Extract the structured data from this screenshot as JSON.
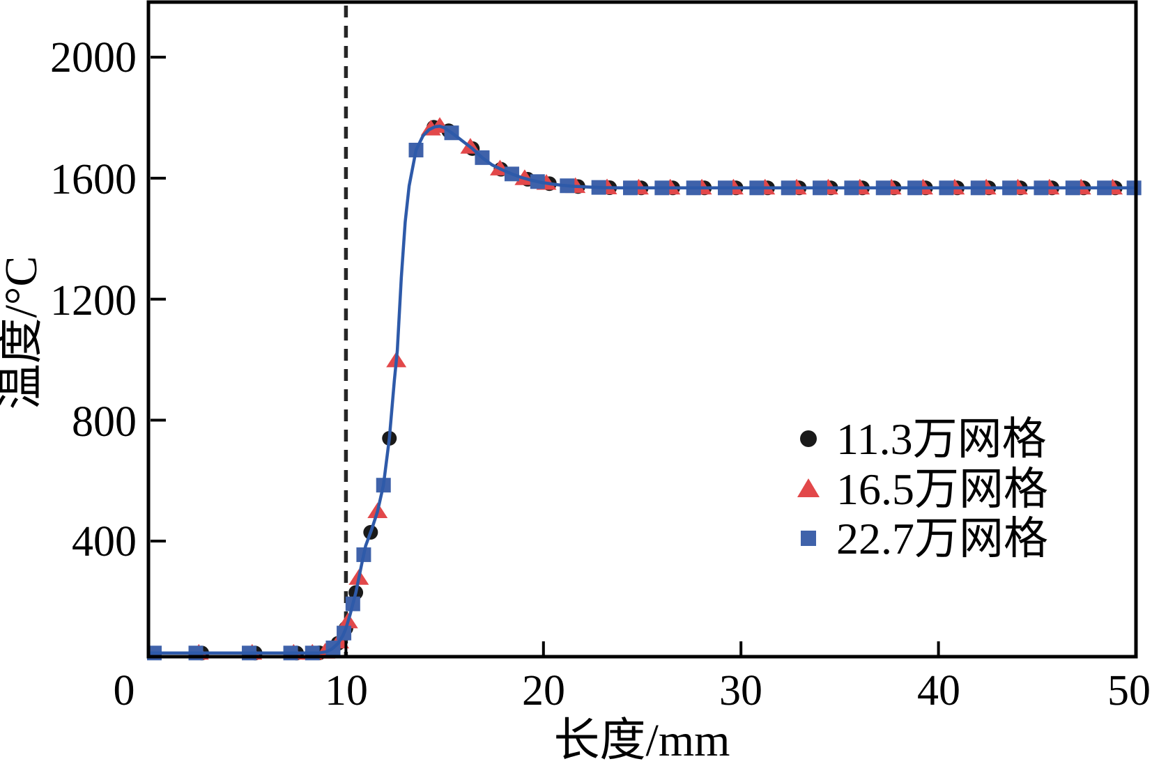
{
  "chart_data": {
    "type": "line",
    "title": "",
    "xlabel": "长度/mm",
    "ylabel": "温度/°C",
    "xlim": [
      0,
      50
    ],
    "ylim": [
      11,
      2180
    ],
    "x_ticks": [
      0,
      10,
      20,
      30,
      40,
      50
    ],
    "y_ticks": [
      400,
      800,
      1200,
      1600,
      2000
    ],
    "grid": false,
    "legend_position": "center-right",
    "axis_color": "#000000",
    "line_color": "#2e5aa9",
    "annotations": [
      {
        "type": "vline",
        "x": 10,
        "style": "dashed",
        "color": "#262626"
      }
    ],
    "curve": [
      [
        0,
        30
      ],
      [
        8.6,
        30
      ],
      [
        9.0,
        34
      ],
      [
        9.3,
        44
      ],
      [
        9.6,
        62
      ],
      [
        9.85,
        88
      ],
      [
        10.0,
        112
      ],
      [
        10.2,
        155
      ],
      [
        10.5,
        230
      ],
      [
        10.8,
        325
      ],
      [
        11.0,
        385
      ],
      [
        11.3,
        438
      ],
      [
        11.6,
        498
      ],
      [
        11.9,
        585
      ],
      [
        12.2,
        740
      ],
      [
        12.45,
        930
      ],
      [
        12.6,
        1030
      ],
      [
        12.8,
        1270
      ],
      [
        13.0,
        1455
      ],
      [
        13.2,
        1575
      ],
      [
        13.55,
        1693
      ],
      [
        13.9,
        1740
      ],
      [
        14.2,
        1760
      ],
      [
        14.5,
        1770
      ],
      [
        14.75,
        1772
      ],
      [
        15.0,
        1766
      ],
      [
        15.35,
        1750
      ],
      [
        15.7,
        1733
      ],
      [
        16.0,
        1718
      ],
      [
        16.4,
        1698
      ],
      [
        16.9,
        1668
      ],
      [
        17.4,
        1644
      ],
      [
        17.9,
        1628
      ],
      [
        18.4,
        1614
      ],
      [
        18.9,
        1602
      ],
      [
        19.4,
        1593
      ],
      [
        19.9,
        1586
      ],
      [
        20.4,
        1581
      ],
      [
        21.0,
        1576
      ],
      [
        21.6,
        1573
      ],
      [
        22.2,
        1571
      ],
      [
        23.0,
        1569
      ],
      [
        24.0,
        1568
      ],
      [
        25.5,
        1568
      ],
      [
        27.0,
        1568
      ],
      [
        29.0,
        1568
      ],
      [
        31.0,
        1568
      ],
      [
        33.0,
        1568
      ],
      [
        35.0,
        1568
      ],
      [
        37.0,
        1568
      ],
      [
        39.0,
        1568
      ],
      [
        41.0,
        1568
      ],
      [
        43.0,
        1568
      ],
      [
        45.0,
        1568
      ],
      [
        47.0,
        1568
      ],
      [
        49.0,
        1568
      ],
      [
        50.0,
        1568
      ]
    ],
    "series": [
      {
        "name": "11.3万网格",
        "marker": "circle",
        "color": "#1a1a1a",
        "x": [
          2.7,
          5.4,
          7.5,
          8.65,
          9.6,
          10.0,
          10.5,
          11.25,
          12.2,
          14.45,
          15.2,
          16.4,
          17.85,
          19.2,
          20.3,
          21.75,
          23.35,
          24.95,
          26.55,
          28.15,
          29.75,
          31.35,
          32.95,
          34.55,
          36.15,
          37.75,
          39.35,
          40.95,
          42.55,
          44.15,
          45.75,
          47.35,
          48.95
        ]
      },
      {
        "name": "16.5万网格",
        "marker": "triangle",
        "color": "#e2484a",
        "x": [
          2.55,
          5.25,
          7.35,
          8.3,
          8.95,
          9.65,
          10.1,
          10.65,
          11.6,
          12.55,
          14.3,
          14.75,
          16.3,
          17.8,
          19.05,
          20.15,
          21.62,
          23.22,
          24.82,
          26.42,
          28.02,
          29.62,
          31.22,
          32.82,
          34.42,
          36.02,
          37.62,
          39.22,
          40.82,
          42.42,
          44.02,
          45.62,
          47.22,
          48.82
        ]
      },
      {
        "name": "22.7万网格",
        "marker": "square",
        "color": "#3f62aa",
        "x": [
          0.3,
          2.4,
          5.1,
          7.2,
          8.3,
          9.35,
          9.9,
          10.35,
          10.9,
          11.9,
          13.55,
          15.35,
          16.9,
          18.4,
          19.7,
          21.2,
          22.8,
          24.4,
          26.0,
          27.6,
          29.2,
          30.8,
          32.4,
          34.0,
          35.6,
          37.2,
          38.8,
          40.4,
          42.0,
          43.6,
          45.2,
          46.8,
          48.4,
          49.9
        ]
      }
    ],
    "draw_order": [
      0,
      1,
      2
    ]
  }
}
